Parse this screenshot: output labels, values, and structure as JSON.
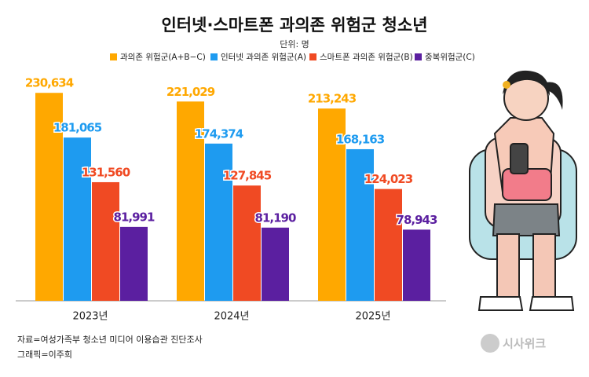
{
  "chart_data": {
    "type": "bar",
    "title": "인터넷·스마트폰 과의존 위험군 청소년",
    "subtitle": "단위: 명",
    "categories": [
      "2023년",
      "2024년",
      "2025년"
    ],
    "series": [
      {
        "name": "과의존 위험군(A+B−C)",
        "color": "#ffa800",
        "values": [
          230634,
          221029,
          213243
        ],
        "value_labels": [
          "230,634",
          "221,029",
          "213,243"
        ]
      },
      {
        "name": "인터넷 과의존 위험군(A)",
        "color": "#1e9bf0",
        "values": [
          181065,
          174374,
          168163
        ],
        "value_labels": [
          "181,065",
          "174,374",
          "168,163"
        ]
      },
      {
        "name": "스마트폰 과의존 위험군(B)",
        "color": "#f04a23",
        "values": [
          131560,
          127845,
          124023
        ],
        "value_labels": [
          "131,560",
          "127,845",
          "124,023"
        ]
      },
      {
        "name": "중복위험군(C)",
        "color": "#5b1fa0",
        "values": [
          81991,
          81190,
          78943
        ],
        "value_labels": [
          "81,991",
          "81,190",
          "78,943"
        ]
      }
    ],
    "ylim": [
      0,
      250000
    ],
    "source": "자료=여성가족부 청소년 미디어 이용습관 진단조사",
    "credit": "그래픽=이주희",
    "logo": "시사위크"
  }
}
